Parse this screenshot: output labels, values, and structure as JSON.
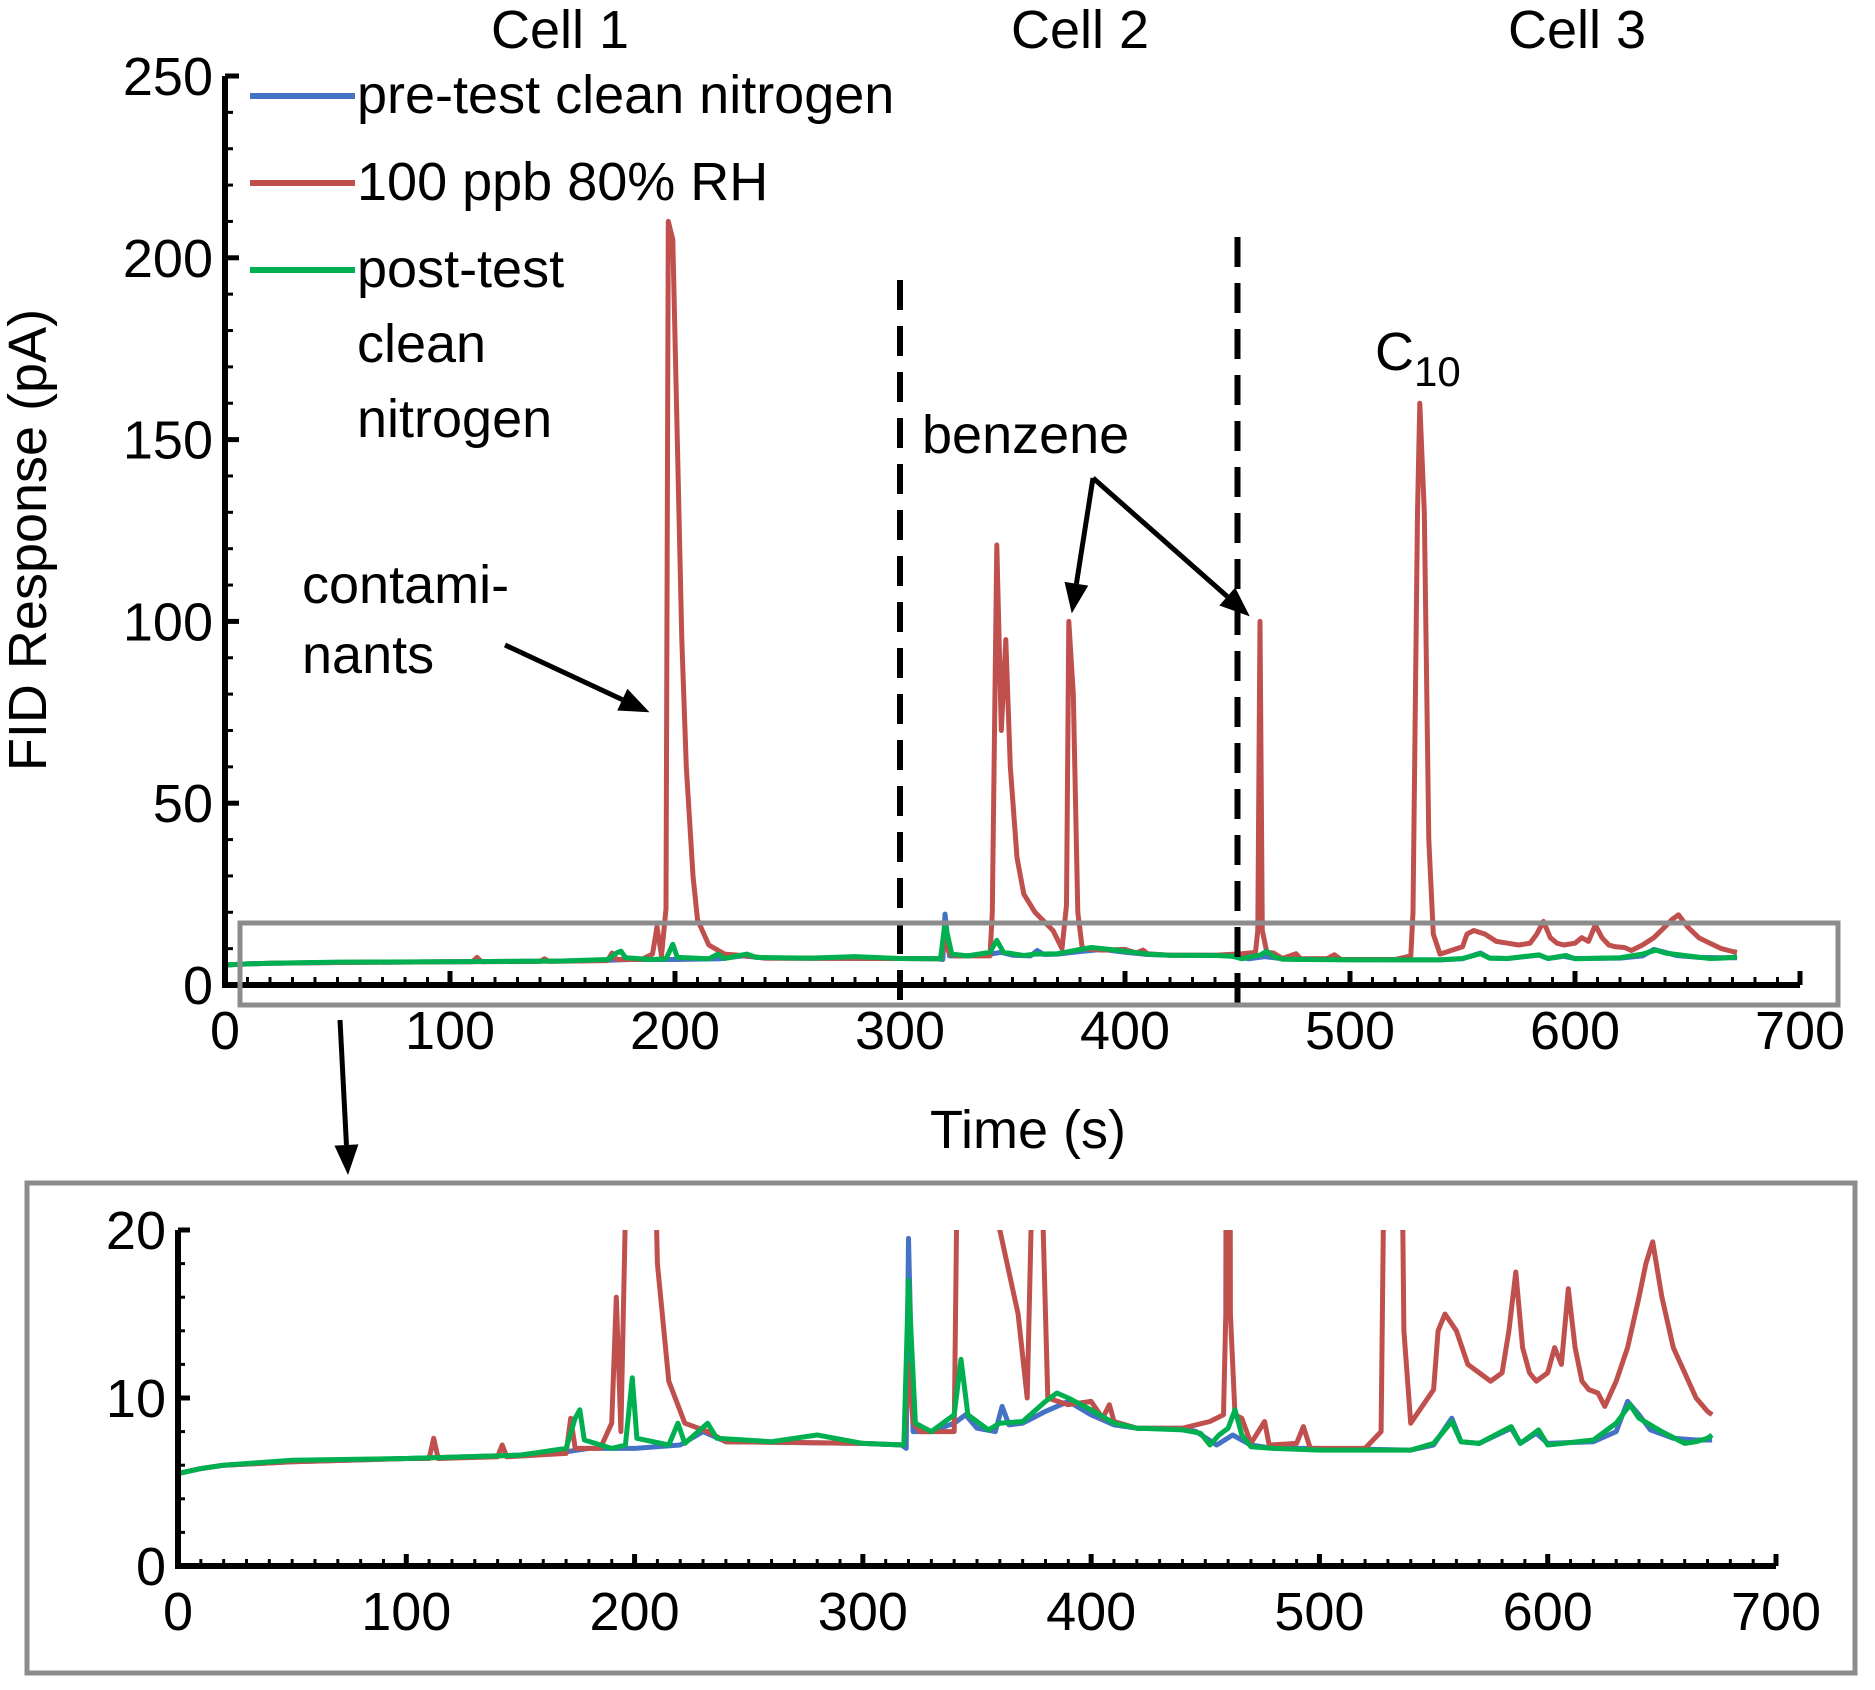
{
  "colors": {
    "pre_test": "#4472C4",
    "test": "#C0504D",
    "post_test": "#00B050",
    "axis": "#000000",
    "zoom_box": "#8c8c8c"
  },
  "chart_data": [
    {
      "id": "main",
      "type": "line",
      "xlabel": "Time (s)",
      "ylabel": "FID Response (pA)",
      "xlim": [
        0,
        700
      ],
      "ylim": [
        0,
        250
      ],
      "xticks": [
        0,
        100,
        200,
        300,
        400,
        500,
        600,
        700
      ],
      "yticks": [
        0,
        50,
        100,
        150,
        200,
        250
      ],
      "cell_labels": [
        {
          "text": "Cell 1",
          "x": 150
        },
        {
          "text": "Cell 2",
          "x": 375
        },
        {
          "text": "Cell 3",
          "x": 595
        }
      ],
      "dividers": [
        300,
        450
      ],
      "legend": [
        {
          "label": "pre-test clean nitrogen",
          "series": "pre_test"
        },
        {
          "label": "100 ppb 80% RH",
          "series": "test"
        },
        {
          "label_lines": [
            "post-test",
            "clean",
            "nitrogen"
          ],
          "series": "post_test"
        }
      ],
      "annotations": {
        "contaminants": {
          "lines": [
            "contami-",
            "nants"
          ],
          "arrow_to": [
            190,
            75
          ]
        },
        "benzene": {
          "text": "benzene",
          "arrows_to": [
            [
              375,
              100
            ],
            [
              459,
              100
            ]
          ]
        },
        "c10": {
          "base": "C",
          "sub": "10",
          "at": [
            531,
            160
          ]
        }
      }
    },
    {
      "id": "inset",
      "type": "line",
      "title": "",
      "xlim": [
        0,
        700
      ],
      "ylim": [
        0,
        20
      ],
      "xticks": [
        0,
        100,
        200,
        300,
        400,
        500,
        600,
        700
      ],
      "yticks": [
        0,
        10,
        20
      ]
    }
  ],
  "series": {
    "pre_test": [
      [
        0,
        5.5
      ],
      [
        10,
        5.8
      ],
      [
        20,
        6
      ],
      [
        50,
        6.2
      ],
      [
        100,
        6.4
      ],
      [
        150,
        6.6
      ],
      [
        170,
        6.8
      ],
      [
        180,
        7
      ],
      [
        200,
        7
      ],
      [
        220,
        7.2
      ],
      [
        230,
        8
      ],
      [
        240,
        7.4
      ],
      [
        300,
        7.3
      ],
      [
        317,
        7.2
      ],
      [
        319,
        7
      ],
      [
        320,
        19.5
      ],
      [
        322,
        8
      ],
      [
        330,
        8
      ],
      [
        340,
        8.5
      ],
      [
        345,
        9
      ],
      [
        350,
        8.2
      ],
      [
        358,
        8
      ],
      [
        361,
        9.5
      ],
      [
        364,
        8.4
      ],
      [
        370,
        8.5
      ],
      [
        380,
        9.2
      ],
      [
        390,
        9.8
      ],
      [
        400,
        9
      ],
      [
        410,
        8.4
      ],
      [
        420,
        8.2
      ],
      [
        440,
        8.2
      ],
      [
        446,
        8
      ],
      [
        455,
        7.2
      ],
      [
        462,
        7.8
      ],
      [
        470,
        7.2
      ],
      [
        480,
        7
      ],
      [
        500,
        7
      ],
      [
        540,
        6.9
      ],
      [
        550,
        7.2
      ],
      [
        558,
        8.8
      ],
      [
        562,
        7.4
      ],
      [
        570,
        7.3
      ],
      [
        584,
        8.2
      ],
      [
        588,
        7.3
      ],
      [
        595,
        7.9
      ],
      [
        600,
        7.3
      ],
      [
        620,
        7.4
      ],
      [
        630,
        8
      ],
      [
        635,
        9.8
      ],
      [
        640,
        9
      ],
      [
        645,
        8.1
      ],
      [
        655,
        7.6
      ],
      [
        665,
        7.5
      ],
      [
        672,
        7.5
      ]
    ],
    "post_test": [
      [
        0,
        5.5
      ],
      [
        10,
        5.8
      ],
      [
        20,
        6
      ],
      [
        50,
        6.3
      ],
      [
        100,
        6.4
      ],
      [
        150,
        6.6
      ],
      [
        170,
        7
      ],
      [
        174,
        8.8
      ],
      [
        176,
        9.3
      ],
      [
        178,
        7.5
      ],
      [
        190,
        7
      ],
      [
        196,
        7.2
      ],
      [
        199,
        11.2
      ],
      [
        201,
        7.6
      ],
      [
        215,
        7.2
      ],
      [
        219,
        8.5
      ],
      [
        222,
        7.3
      ],
      [
        232,
        8.5
      ],
      [
        236,
        7.6
      ],
      [
        260,
        7.4
      ],
      [
        280,
        7.8
      ],
      [
        300,
        7.3
      ],
      [
        318,
        7.2
      ],
      [
        320,
        17
      ],
      [
        323,
        8.5
      ],
      [
        330,
        8
      ],
      [
        340,
        9
      ],
      [
        343,
        12.3
      ],
      [
        346,
        9
      ],
      [
        355,
        8.1
      ],
      [
        360,
        8.5
      ],
      [
        370,
        8.6
      ],
      [
        380,
        9.8
      ],
      [
        385,
        10.3
      ],
      [
        390,
        10
      ],
      [
        400,
        9.3
      ],
      [
        410,
        8.5
      ],
      [
        420,
        8.2
      ],
      [
        440,
        8.1
      ],
      [
        448,
        7.9
      ],
      [
        452,
        7.2
      ],
      [
        456,
        7.8
      ],
      [
        460,
        8.2
      ],
      [
        463,
        9.3
      ],
      [
        466,
        7.8
      ],
      [
        470,
        7.1
      ],
      [
        480,
        7
      ],
      [
        500,
        6.9
      ],
      [
        540,
        6.9
      ],
      [
        550,
        7.3
      ],
      [
        558,
        8.6
      ],
      [
        562,
        7.4
      ],
      [
        570,
        7.3
      ],
      [
        584,
        8.3
      ],
      [
        588,
        7.3
      ],
      [
        596,
        8.1
      ],
      [
        600,
        7.2
      ],
      [
        620,
        7.5
      ],
      [
        630,
        8.5
      ],
      [
        636,
        9.6
      ],
      [
        640,
        8.8
      ],
      [
        650,
        8
      ],
      [
        660,
        7.3
      ],
      [
        665,
        7.4
      ],
      [
        670,
        7.6
      ],
      [
        672,
        7.8
      ]
    ],
    "test": [
      [
        0,
        5.5
      ],
      [
        10,
        5.8
      ],
      [
        20,
        6
      ],
      [
        50,
        6.2
      ],
      [
        100,
        6.4
      ],
      [
        110,
        6.4
      ],
      [
        112,
        7.6
      ],
      [
        114,
        6.4
      ],
      [
        140,
        6.5
      ],
      [
        142,
        7.2
      ],
      [
        144,
        6.5
      ],
      [
        170,
        6.7
      ],
      [
        172,
        8.8
      ],
      [
        174,
        7
      ],
      [
        185,
        7
      ],
      [
        190,
        8.5
      ],
      [
        192,
        16
      ],
      [
        194,
        8
      ],
      [
        196,
        21
      ],
      [
        197,
        210
      ],
      [
        199,
        205
      ],
      [
        201,
        150
      ],
      [
        203,
        95
      ],
      [
        205,
        60
      ],
      [
        208,
        30
      ],
      [
        210,
        18
      ],
      [
        215,
        11
      ],
      [
        222,
        8.5
      ],
      [
        232,
        8
      ],
      [
        240,
        7.4
      ],
      [
        300,
        7.3
      ],
      [
        318,
        7.2
      ],
      [
        320,
        12
      ],
      [
        322,
        8.5
      ],
      [
        325,
        8
      ],
      [
        340,
        8
      ],
      [
        341,
        20
      ],
      [
        343,
        121
      ],
      [
        345,
        70
      ],
      [
        347,
        95
      ],
      [
        349,
        60
      ],
      [
        352,
        35
      ],
      [
        355,
        25
      ],
      [
        360,
        20
      ],
      [
        368,
        15
      ],
      [
        372,
        10
      ],
      [
        374,
        22
      ],
      [
        375,
        100
      ],
      [
        377,
        80
      ],
      [
        379,
        20
      ],
      [
        381,
        10
      ],
      [
        390,
        9.6
      ],
      [
        400,
        9.8
      ],
      [
        405,
        8.8
      ],
      [
        408,
        9.6
      ],
      [
        410,
        8.6
      ],
      [
        420,
        8.2
      ],
      [
        440,
        8.2
      ],
      [
        452,
        8.6
      ],
      [
        458,
        9
      ],
      [
        459,
        15
      ],
      [
        460,
        100
      ],
      [
        461,
        15
      ],
      [
        463,
        9
      ],
      [
        466,
        8.8
      ],
      [
        470,
        7.3
      ],
      [
        476,
        8.6
      ],
      [
        478,
        7.2
      ],
      [
        490,
        7.3
      ],
      [
        493,
        8.3
      ],
      [
        496,
        7
      ],
      [
        520,
        7
      ],
      [
        527,
        8
      ],
      [
        528,
        20
      ],
      [
        530,
        130
      ],
      [
        531,
        160
      ],
      [
        533,
        130
      ],
      [
        535,
        40
      ],
      [
        537,
        14
      ],
      [
        540,
        8.5
      ],
      [
        550,
        10.5
      ],
      [
        552,
        14
      ],
      [
        555,
        15
      ],
      [
        560,
        14
      ],
      [
        565,
        12
      ],
      [
        570,
        11.5
      ],
      [
        575,
        11
      ],
      [
        580,
        11.5
      ],
      [
        583,
        14
      ],
      [
        586,
        17.5
      ],
      [
        589,
        13
      ],
      [
        592,
        11.5
      ],
      [
        595,
        11
      ],
      [
        600,
        11.5
      ],
      [
        603,
        13
      ],
      [
        606,
        12
      ],
      [
        609,
        16.5
      ],
      [
        612,
        13
      ],
      [
        615,
        11
      ],
      [
        618,
        10.5
      ],
      [
        622,
        10.3
      ],
      [
        625,
        9.5
      ],
      [
        630,
        11
      ],
      [
        635,
        13
      ],
      [
        640,
        16
      ],
      [
        643,
        18
      ],
      [
        646,
        19.3
      ],
      [
        650,
        16
      ],
      [
        655,
        13
      ],
      [
        660,
        11.5
      ],
      [
        665,
        10
      ],
      [
        670,
        9.2
      ],
      [
        672,
        9
      ]
    ]
  }
}
